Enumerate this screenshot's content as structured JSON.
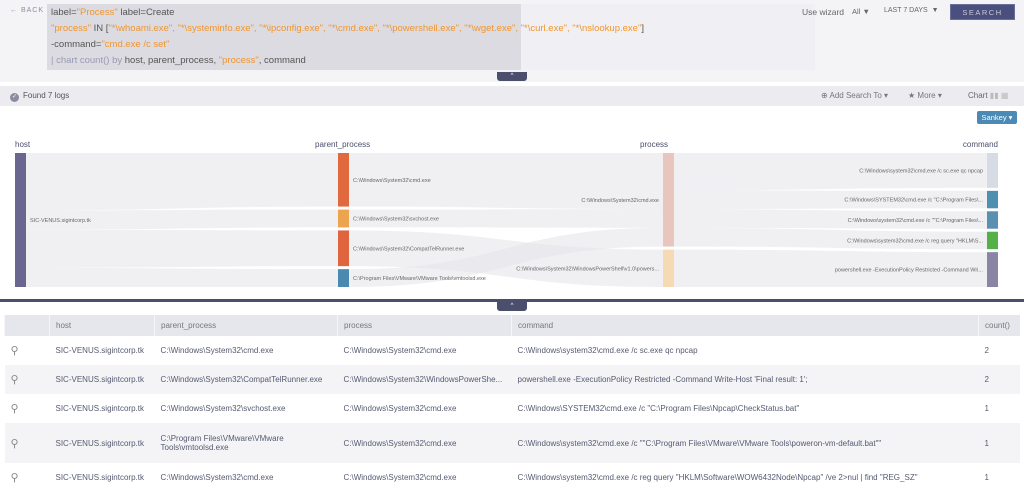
{
  "header": {
    "back_label": "BACK",
    "query_lines": {
      "l1a": "label=",
      "l1b": "\"Process\"",
      "l1c": " label=Create",
      "l2a": "\"process\"",
      "l2b": " IN [",
      "l2c": "\"*\\whoami.exe\", \"*\\systeminfo.exe\", \"*\\ipconfig.exe\", \"*\\cmd.exe\", \"*\\powershell.exe\", \"*\\wget.exe\", \"*\\curl.exe\", \"*\\nslookup.exe\"",
      "l2d": "]",
      "l3a": "-command=",
      "l3b": "\"cmd.exe /c set\"",
      "l4a": "| chart count() by",
      "l4b": " host, parent_process, ",
      "l4c": "\"process\"",
      "l4d": ", command"
    },
    "use_wizard": "Use wizard",
    "scope": "All",
    "time_range": "LAST 7 DAYS",
    "search_label": "SEARCH",
    "collapse": "^"
  },
  "toolbar": {
    "found": "Found 7 logs",
    "add_search": "Add Search To",
    "more": "More",
    "chart": "Chart",
    "chart_type": "Sankey"
  },
  "chart_data": {
    "type": "sankey",
    "columns": [
      "host",
      "parent_process",
      "process",
      "command"
    ],
    "nodes": [
      {
        "id": "h",
        "col": 0,
        "label": "SIC-VENUS.sigintcorp.tk",
        "color": "#6b6690"
      },
      {
        "id": "p1",
        "col": 1,
        "label": "C:\\Windows\\System32\\cmd.exe",
        "color": "#e06a3e"
      },
      {
        "id": "p2",
        "col": 1,
        "label": "C:\\Windows\\System32\\svchost.exe",
        "color": "#eda44f"
      },
      {
        "id": "p3",
        "col": 1,
        "label": "C:\\Windows\\System32\\CompatTelRunner.exe",
        "color": "#e0653e"
      },
      {
        "id": "p4",
        "col": 1,
        "label": "C:\\Program Files\\VMware\\VMware Tools\\vmtoolsd.exe",
        "color": "#4a8ab0"
      },
      {
        "id": "r1",
        "col": 2,
        "label": "C:\\Windows\\System32\\cmd.exe",
        "color": "#e8c6bd"
      },
      {
        "id": "r2",
        "col": 2,
        "label": "C:\\Windows\\System32\\WindowsPowerShell\\v1.0\\powers...",
        "color": "#f6dab3"
      },
      {
        "id": "c1",
        "col": 3,
        "label": "C:\\Windows\\system32\\cmd.exe /c sc.exe qc npcap",
        "color": "#d6dbe4"
      },
      {
        "id": "c2",
        "col": 3,
        "label": "C:\\Windows\\SYSTEM32\\cmd.exe /c \"C:\\Program Files\\...",
        "color": "#4f8fb0"
      },
      {
        "id": "c3",
        "col": 3,
        "label": "C:\\Windows\\system32\\cmd.exe /c \"\"C:\\Program Files\\...",
        "color": "#5a90b2"
      },
      {
        "id": "c4",
        "col": 3,
        "label": "C:\\Windows\\system32\\cmd.exe /c reg query \"HKLM\\S...",
        "color": "#56b048"
      },
      {
        "id": "c5",
        "col": 3,
        "label": "powershell.exe -ExecutionPolicy Restricted -Command Wri...",
        "color": "#8a85a5"
      }
    ],
    "links": [
      [
        "h",
        "p1",
        3
      ],
      [
        "h",
        "p2",
        1
      ],
      [
        "h",
        "p3",
        2
      ],
      [
        "h",
        "p4",
        1
      ],
      [
        "p1",
        "r1",
        3
      ],
      [
        "p2",
        "r1",
        1
      ],
      [
        "p4",
        "r1",
        1
      ],
      [
        "p3",
        "r2",
        2
      ],
      [
        "r1",
        "c1",
        2
      ],
      [
        "r1",
        "c2",
        1
      ],
      [
        "r1",
        "c3",
        1
      ],
      [
        "r1",
        "c4",
        1
      ],
      [
        "r2",
        "c5",
        2
      ]
    ]
  },
  "table": {
    "headers": [
      "host",
      "parent_process",
      "process",
      "command",
      "count()"
    ],
    "rows": [
      [
        "SIC-VENUS.sigintcorp.tk",
        "C:\\Windows\\System32\\cmd.exe",
        "C:\\Windows\\System32\\cmd.exe",
        "C:\\Windows\\system32\\cmd.exe /c sc.exe qc npcap",
        "2"
      ],
      [
        "SIC-VENUS.sigintcorp.tk",
        "C:\\Windows\\System32\\CompatTelRunner.exe",
        "C:\\Windows\\System32\\WindowsPowerShe...",
        "powershell.exe -ExecutionPolicy Restricted -Command Write-Host 'Final result: 1';",
        "2"
      ],
      [
        "SIC-VENUS.sigintcorp.tk",
        "C:\\Windows\\System32\\svchost.exe",
        "C:\\Windows\\System32\\cmd.exe",
        "C:\\Windows\\SYSTEM32\\cmd.exe /c \"C:\\Program Files\\Npcap\\CheckStatus.bat\"",
        "1"
      ],
      [
        "SIC-VENUS.sigintcorp.tk",
        "C:\\Program Files\\VMware\\VMware Tools\\vmtoolsd.exe",
        "C:\\Windows\\System32\\cmd.exe",
        "C:\\Windows\\system32\\cmd.exe /c \"\"C:\\Program Files\\VMware\\VMware Tools\\poweron-vm-default.bat\"\"",
        "1"
      ],
      [
        "SIC-VENUS.sigintcorp.tk",
        "C:\\Windows\\System32\\cmd.exe",
        "C:\\Windows\\System32\\cmd.exe",
        "C:\\Windows\\system32\\cmd.exe /c reg query \"HKLM\\Software\\WOW6432Node\\Npcap\" /ve 2>nul | find \"REG_SZ\"",
        "1"
      ]
    ]
  }
}
